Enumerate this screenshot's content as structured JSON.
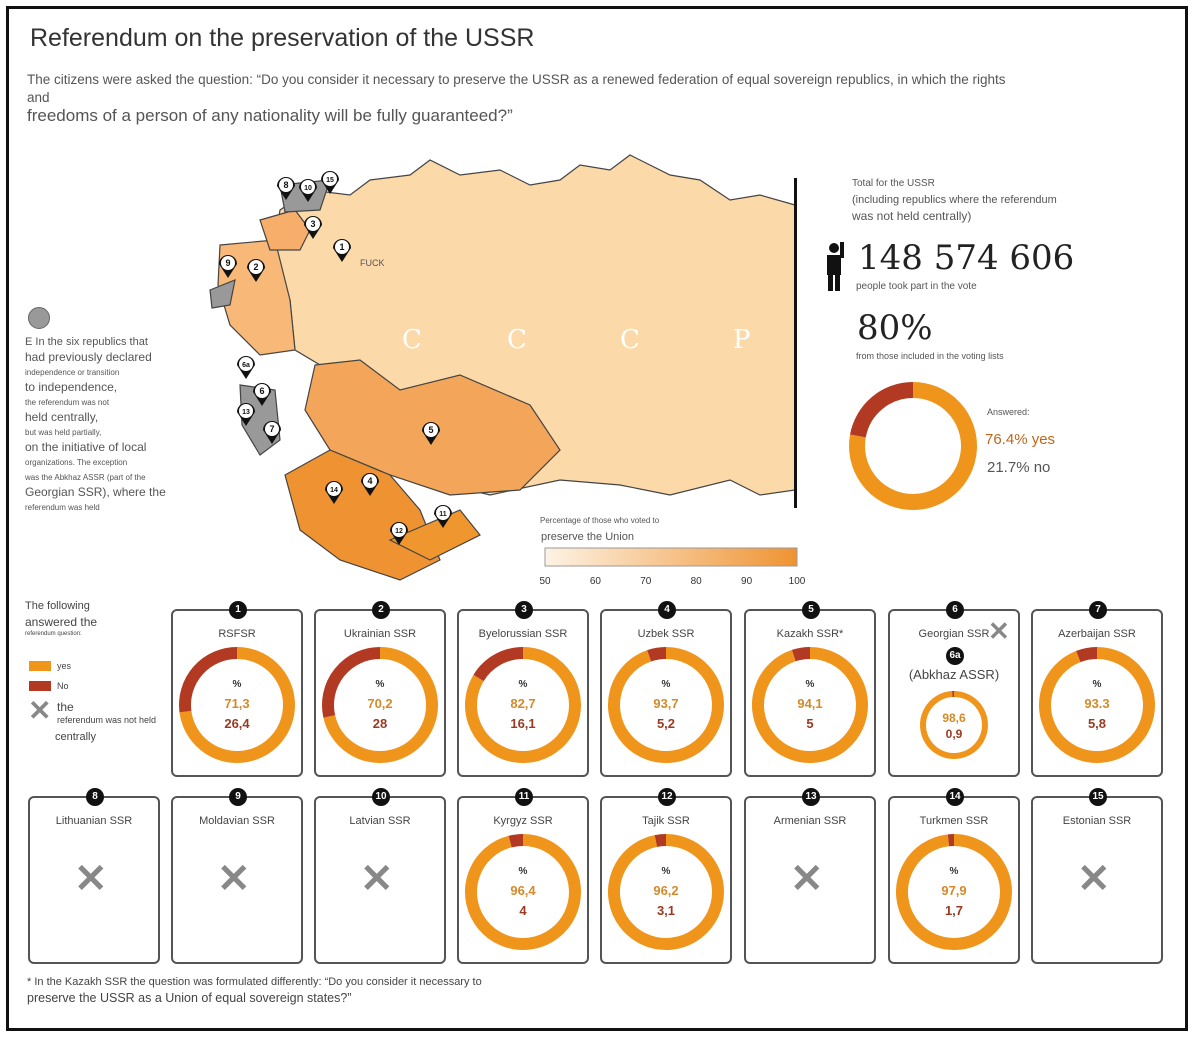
{
  "header": {
    "title": "Referendum on the preservation of the USSR",
    "subtitle_line1": "The citizens were asked the question: “Do you consider it necessary to preserve the USSR as a renewed federation of equal sovereign republics, in which the rights and",
    "subtitle_line2": "freedoms of a person of any nationality will be fully guaranteed?”"
  },
  "left_note": {
    "l1": "E In the six republics that",
    "l2": "had previously declared",
    "l3": "independence or transition",
    "l4": "to independence,",
    "l5": "the referendum was not",
    "l6": "held centrally,",
    "l7": "but was held partially,",
    "l8": "on the initiative of local",
    "l9": "organizations. The exception",
    "l10": "was the Abkhaz ASSR (part of the",
    "l11": "Georgian SSR), where the",
    "l12": "referendum was held"
  },
  "map": {
    "cccp_letters": [
      "C",
      "C",
      "C",
      "P"
    ],
    "marker_label_1": "FUCK",
    "markers": [
      "1",
      "2",
      "3",
      "4",
      "5",
      "6",
      "6a",
      "7",
      "8",
      "9",
      "10",
      "11",
      "12",
      "13",
      "14",
      "15"
    ],
    "scale_title_small": "Percentage of those who voted to",
    "scale_title": "preserve the Union",
    "scale_ticks": [
      "50",
      "60",
      "70",
      "80",
      "90",
      "100"
    ],
    "colors": {
      "low": "#fdf3e4",
      "high": "#ef9332",
      "border": "#333",
      "no_vote": "#999"
    }
  },
  "totals": {
    "label1": "Total for the USSR",
    "label2": "(including republics where the referendum",
    "label3": "was not held centrally)",
    "voters": "148 574 606",
    "voters_label": "people took part in the vote",
    "turnout": "80%",
    "turnout_label": "from those included in the voting lists",
    "answered_label": "Answered:",
    "yes_text": "76.4% yes",
    "no_text": "21.7% no"
  },
  "legend": {
    "l1": "The following",
    "l2": "answered the",
    "l3": "referendum question:",
    "yes": "yes",
    "no": "No",
    "not_held_1": "the",
    "not_held_2": "referendum was not held",
    "not_held_3": "centrally",
    "colors": {
      "yes": "#f0951c",
      "no": "#b23a22"
    }
  },
  "footnote": {
    "l1": "* In the Kazakh SSR the question was formulated differently: “Do you consider it necessary to",
    "l2": "preserve the USSR as a Union of equal sovereign states?”"
  },
  "chart_data": {
    "type": "pie",
    "total": {
      "yes": 76.4,
      "no": 21.7
    },
    "republics": [
      {
        "num": "1",
        "name": "RSFSR",
        "pct": "%",
        "yes": "71,3",
        "no": "26,4",
        "yes_v": 71.3,
        "no_v": 26.4
      },
      {
        "num": "2",
        "name": "Ukrainian SSR",
        "pct": "%",
        "yes": "70,2",
        "no": "28",
        "yes_v": 70.2,
        "no_v": 28
      },
      {
        "num": "3",
        "name": "Byelorussian SSR",
        "pct": "%",
        "yes": "82,7",
        "no": "16,1",
        "yes_v": 82.7,
        "no_v": 16.1
      },
      {
        "num": "4",
        "name": "Uzbek SSR",
        "pct": "%",
        "yes": "93,7",
        "no": "5,2",
        "yes_v": 93.7,
        "no_v": 5.2
      },
      {
        "num": "5",
        "name": "Kazakh SSR*",
        "pct": "%",
        "yes": "94,1",
        "no": "5",
        "yes_v": 94.1,
        "no_v": 5
      },
      {
        "num": "6",
        "name": "Georgian SSR",
        "sub_num": "6a",
        "sub_name": "(Abkhaz ASSR)",
        "yes": "98,6",
        "no": "0,9",
        "yes_v": 98.6,
        "no_v": 0.9
      },
      {
        "num": "7",
        "name": "Azerbaijan SSR",
        "pct": "%",
        "yes": "93.3",
        "no": "5,8",
        "yes_v": 93.3,
        "no_v": 5.8
      },
      {
        "num": "8",
        "name": "Lithuanian SSR",
        "held": false
      },
      {
        "num": "9",
        "name": "Moldavian SSR",
        "held": false
      },
      {
        "num": "10",
        "name": "Latvian SSR",
        "held": false
      },
      {
        "num": "11",
        "name": "Kyrgyz SSR",
        "pct": "%",
        "yes": "96,4",
        "no": "4",
        "yes_v": 96.4,
        "no_v": 4
      },
      {
        "num": "12",
        "name": "Tajik SSR",
        "pct": "%",
        "yes": "96,2",
        "no": "3,1",
        "yes_v": 96.2,
        "no_v": 3.1
      },
      {
        "num": "13",
        "name": "Armenian SSR",
        "held": false
      },
      {
        "num": "14",
        "name": "Turkmen SSR",
        "pct": "%",
        "yes": "97,9",
        "no": "1,7",
        "yes_v": 97.9,
        "no_v": 1.7
      },
      {
        "num": "15",
        "name": "Estonian SSR",
        "held": false
      }
    ]
  }
}
